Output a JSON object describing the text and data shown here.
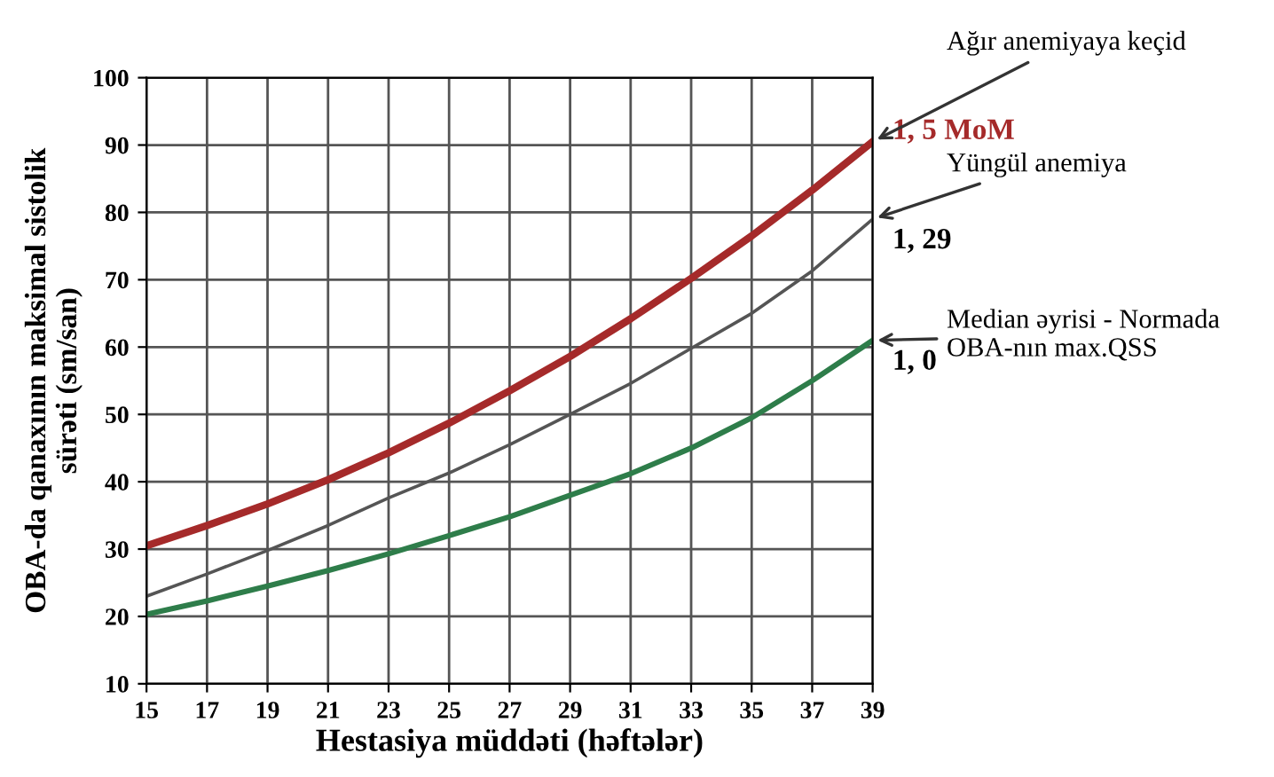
{
  "chart_data": {
    "type": "line",
    "xlabel": "Hestasiya müddəti (həftələr)",
    "ylabel": "OBA-da qanaxının maksimal sistolik\nsürəti (sm/san)",
    "x": [
      15,
      17,
      19,
      21,
      23,
      25,
      27,
      29,
      31,
      33,
      35,
      37,
      39
    ],
    "series": [
      {
        "name": "1, 5 MoM",
        "color": "#a52a2a",
        "values": [
          30.5,
          33.5,
          36.7,
          40.3,
          44.3,
          48.7,
          53.5,
          58.6,
          64.2,
          70.2,
          76.5,
          83.3,
          90.5
        ]
      },
      {
        "name": "1, 29",
        "color": "#555555",
        "values": [
          23,
          26.3,
          29.8,
          33.5,
          37.6,
          41.3,
          45.5,
          50,
          54.6,
          59.8,
          65,
          71.3,
          79
        ]
      },
      {
        "name": "1, 0",
        "color": "#2e7d4a",
        "values": [
          20.3,
          22.3,
          24.5,
          26.8,
          29.3,
          32,
          34.8,
          38,
          41.2,
          45,
          49.5,
          55,
          61
        ]
      }
    ],
    "annotations": [
      "Ağır anemiyaya keçid",
      "Yüngül anemiya",
      "Median əyrisi - Normada\nOBA-nın max.QSS"
    ],
    "xlim": [
      15,
      39
    ],
    "ylim": [
      10,
      100
    ],
    "xticks": [
      15,
      17,
      19,
      21,
      23,
      25,
      27,
      29,
      31,
      33,
      35,
      37,
      39
    ],
    "yticks": [
      10,
      20,
      30,
      40,
      50,
      60,
      70,
      80,
      90,
      100
    ],
    "grid": true,
    "legend": false,
    "marker": "none",
    "line_style": "solid"
  }
}
